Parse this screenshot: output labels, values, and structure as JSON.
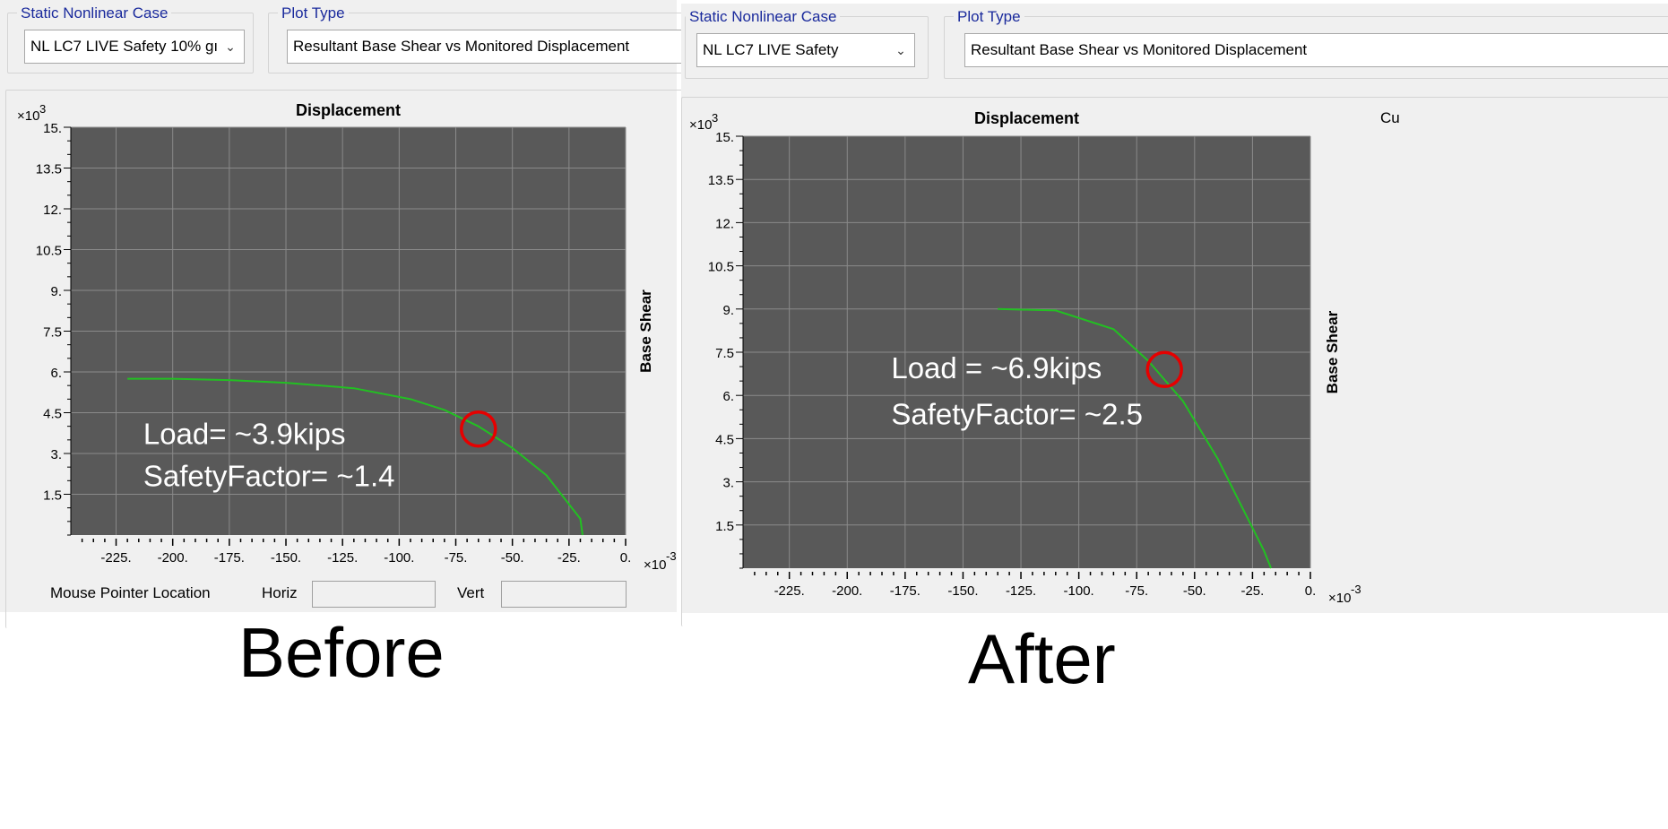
{
  "panels": [
    {
      "caption": "Before",
      "case_label": "Static Nonlinear Case",
      "case_value": "NL LC7 LIVE Safety 10% gı",
      "plot_type_label": "Plot Type",
      "plot_type_value": "Resultant Base Shear vs Monitored Displacement",
      "mouse_label": "Mouse Pointer Location",
      "horiz_label": "Horiz",
      "vert_label": "Vert",
      "extra_text": ""
    },
    {
      "caption": "After",
      "case_label": "Static Nonlinear Case",
      "case_value": "NL LC7 LIVE Safety",
      "plot_type_label": "Plot Type",
      "plot_type_value": "Resultant Base Shear vs Monitored Displacement",
      "mouse_label": "",
      "horiz_label": "",
      "vert_label": "",
      "extra_text": "Cu"
    }
  ],
  "colors": {
    "plot_bg": "#595959",
    "grid": "#8a8a8a",
    "curve": "#22c022",
    "marker": "#e60000",
    "annotation": "#ffffff"
  },
  "chart_data": [
    {
      "type": "line",
      "title": "Displacement",
      "xlabel": "",
      "ylabel": "Base Shear",
      "x_multiplier_label": "×10",
      "x_multiplier_exp": "-3",
      "y_multiplier_label": "×10",
      "y_multiplier_exp": "3",
      "xlim": [
        -245,
        0
      ],
      "ylim": [
        0,
        15
      ],
      "x_ticks": [
        -225,
        -200,
        -175,
        -150,
        -125,
        -100,
        -75,
        -50,
        -25,
        0
      ],
      "x_tick_labels": [
        "-225.",
        "-200.",
        "-175.",
        "-150.",
        "-125.",
        "-100.",
        "-75.",
        "-50.",
        "-25.",
        "0."
      ],
      "y_ticks": [
        1.5,
        3,
        4.5,
        6,
        7.5,
        9,
        10.5,
        12,
        13.5,
        15
      ],
      "y_tick_labels": [
        "1.5",
        "3.",
        "4.5",
        "6.",
        "7.5",
        "9.",
        "10.5",
        "12.",
        "13.5",
        "15."
      ],
      "grid": true,
      "series": [
        {
          "x": [
            -220,
            -200,
            -175,
            -150,
            -120,
            -95,
            -80,
            -65,
            -50,
            -35,
            -20,
            -19
          ],
          "y": [
            5.75,
            5.75,
            5.7,
            5.6,
            5.4,
            5.0,
            4.6,
            4.0,
            3.2,
            2.2,
            0.6,
            0
          ]
        }
      ],
      "annotations": [
        {
          "text": "Load= ~3.9kips",
          "x": -213,
          "y": 3.35
        },
        {
          "text": "SafetyFactor= ~1.4",
          "x": -213,
          "y": 1.8
        }
      ],
      "marker_point": {
        "x": -65,
        "y": 3.9
      }
    },
    {
      "type": "line",
      "title": "Displacement",
      "xlabel": "",
      "ylabel": "Base Shear",
      "x_multiplier_label": "×10",
      "x_multiplier_exp": "-3",
      "y_multiplier_label": "×10",
      "y_multiplier_exp": "3",
      "xlim": [
        -245,
        0
      ],
      "ylim": [
        0,
        15
      ],
      "x_ticks": [
        -225,
        -200,
        -175,
        -150,
        -125,
        -100,
        -75,
        -50,
        -25,
        0
      ],
      "x_tick_labels": [
        "-225.",
        "-200.",
        "-175.",
        "-150.",
        "-125.",
        "-100.",
        "-75.",
        "-50.",
        "-25.",
        "0."
      ],
      "y_ticks": [
        1.5,
        3,
        4.5,
        6,
        7.5,
        9,
        10.5,
        12,
        13.5,
        15
      ],
      "y_tick_labels": [
        "1.5",
        "3.",
        "4.5",
        "6.",
        "7.5",
        "9.",
        "10.5",
        "12.",
        "13.5",
        "15."
      ],
      "grid": true,
      "series": [
        {
          "x": [
            -135,
            -110,
            -85,
            -70,
            -55,
            -40,
            -20,
            -17
          ],
          "y": [
            9.0,
            8.95,
            8.3,
            7.2,
            5.8,
            3.8,
            0.6,
            0
          ]
        }
      ],
      "annotations": [
        {
          "text": "Load = ~6.9kips",
          "x": -181,
          "y": 6.6
        },
        {
          "text": "SafetyFactor= ~2.5",
          "x": -181,
          "y": 5.0
        }
      ],
      "marker_point": {
        "x": -63,
        "y": 6.9
      }
    }
  ]
}
